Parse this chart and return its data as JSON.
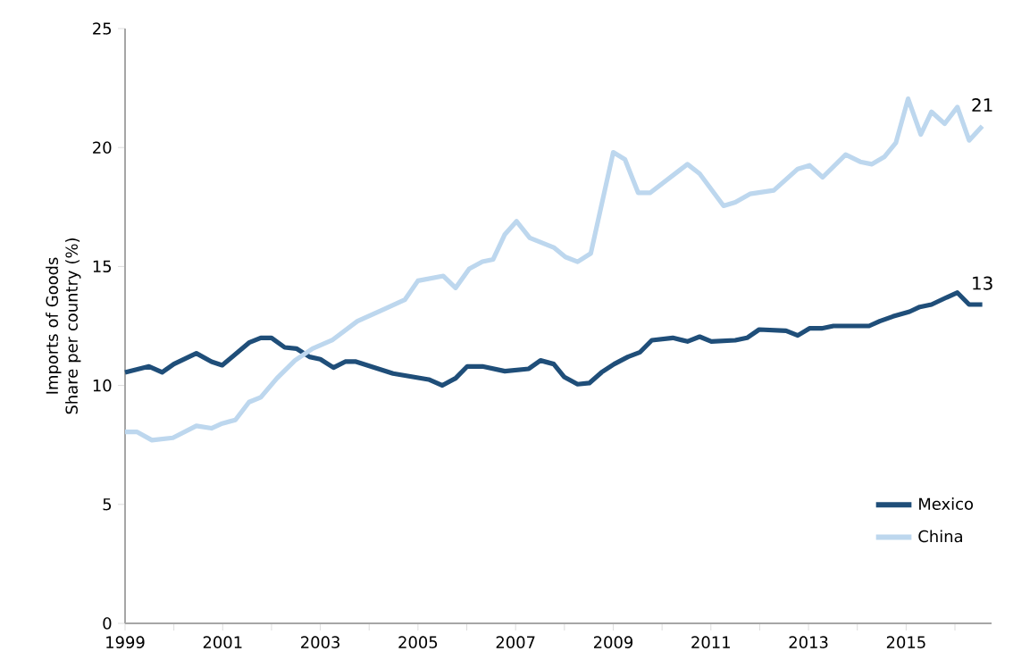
{
  "chart_data": {
    "type": "line",
    "ylabel": "Imports of Goods Share per country (%)",
    "xlim": [
      1999,
      2016.75
    ],
    "ylim": [
      0,
      25
    ],
    "xticks": [
      1999,
      {
        "value": 2000,
        "label": null
      },
      2001,
      {
        "value": 2002,
        "label": null
      },
      2003,
      {
        "value": 2004,
        "label": null
      },
      2005,
      {
        "value": 2006,
        "label": null
      },
      2007,
      {
        "value": 2008,
        "label": null
      },
      2009,
      {
        "value": 2010,
        "label": null
      },
      2011,
      {
        "value": 2012,
        "label": null
      },
      2013,
      {
        "value": 2014,
        "label": null
      },
      2015,
      {
        "value": 2016,
        "label": null
      }
    ],
    "yticks": [
      0,
      5,
      10,
      15,
      20,
      25
    ],
    "grid": false,
    "legend": "bottom right",
    "marker": "none",
    "line_style": "solid",
    "series": [
      {
        "name": "Mexico",
        "color": "#1f4e79",
        "x": [
          1999.0,
          1999.49,
          1999.76,
          2000.0,
          2000.46,
          2000.77,
          2000.99,
          2001.54,
          2001.78,
          2002.0,
          2002.27,
          2002.51,
          2002.78,
          2003.0,
          2003.27,
          2003.51,
          2003.73,
          2004.49,
          2005.22,
          2005.5,
          2005.77,
          2006.01,
          2006.32,
          2006.78,
          2007.27,
          2007.51,
          2007.78,
          2008.0,
          2008.27,
          2008.51,
          2008.76,
          2009.02,
          2009.3,
          2009.55,
          2009.79,
          2010.22,
          2010.52,
          2010.77,
          2011.01,
          2011.5,
          2011.74,
          2011.99,
          2012.54,
          2012.78,
          2013.02,
          2013.27,
          2013.51,
          2014.24,
          2014.46,
          2014.73,
          2015.07,
          2015.28,
          2015.52,
          2015.83,
          2016.05,
          2016.29,
          2016.56
        ],
        "values": [
          10.55,
          10.8,
          10.55,
          10.9,
          11.35,
          11.0,
          10.85,
          11.8,
          12.0,
          12.0,
          11.6,
          11.55,
          11.2,
          11.1,
          10.75,
          11.0,
          11.0,
          10.5,
          10.25,
          10.0,
          10.3,
          10.8,
          10.8,
          10.6,
          10.7,
          11.05,
          10.9,
          10.35,
          10.05,
          10.1,
          10.55,
          10.9,
          11.2,
          11.4,
          11.9,
          12.0,
          11.85,
          12.05,
          11.85,
          11.9,
          12.0,
          12.35,
          12.3,
          12.1,
          12.4,
          12.4,
          12.5,
          12.5,
          12.7,
          12.9,
          13.1,
          13.3,
          13.4,
          13.7,
          13.9,
          13.4,
          13.4
        ]
      },
      {
        "name": "China",
        "color": "#bdd7ee",
        "x": [
          1999.0,
          1999.24,
          1999.55,
          1999.98,
          2000.46,
          2000.77,
          2000.99,
          2001.26,
          2001.54,
          2001.78,
          2002.11,
          2002.48,
          2002.84,
          2003.24,
          2003.76,
          2004.3,
          2004.73,
          2005.0,
          2005.52,
          2005.77,
          2006.05,
          2006.32,
          2006.54,
          2006.78,
          2007.02,
          2007.29,
          2007.78,
          2008.02,
          2008.27,
          2008.54,
          2009.0,
          2009.24,
          2009.51,
          2009.76,
          2010.52,
          2010.77,
          2011.26,
          2011.5,
          2011.8,
          2012.29,
          2012.78,
          2013.02,
          2013.29,
          2013.76,
          2014.06,
          2014.3,
          2014.55,
          2014.79,
          2015.04,
          2015.3,
          2015.52,
          2015.79,
          2016.05,
          2016.29,
          2016.56
        ],
        "values": [
          8.05,
          8.05,
          7.7,
          7.8,
          8.3,
          8.2,
          8.4,
          8.55,
          9.3,
          9.5,
          10.3,
          11.05,
          11.55,
          11.9,
          12.7,
          13.2,
          13.6,
          14.4,
          14.6,
          14.1,
          14.9,
          15.2,
          15.3,
          16.35,
          16.9,
          16.2,
          15.8,
          15.4,
          15.2,
          15.55,
          19.8,
          19.5,
          18.1,
          18.1,
          19.3,
          18.9,
          17.55,
          17.7,
          18.05,
          18.2,
          19.1,
          19.25,
          18.75,
          19.7,
          19.4,
          19.3,
          19.6,
          20.2,
          22.05,
          20.55,
          21.5,
          21.0,
          21.7,
          20.3,
          20.9
        ]
      }
    ],
    "annotations": [
      {
        "text": "21",
        "x": 2016.56,
        "y": 20.9
      },
      {
        "text": "13",
        "x": 2016.56,
        "y": 13.4
      }
    ]
  }
}
